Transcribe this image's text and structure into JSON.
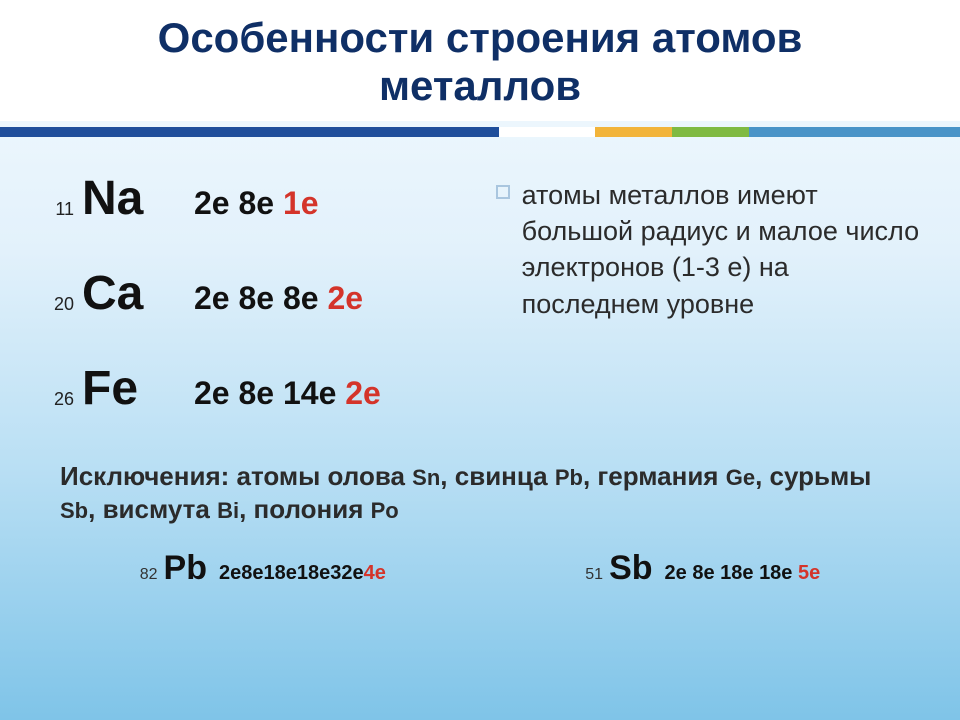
{
  "title": {
    "line1": "Особенности строения атомов",
    "line2": "металлов"
  },
  "divider_colors": [
    "#1f4e9b",
    "#ffffff",
    "#f2b43a",
    "#7fba42",
    "#4a94c8"
  ],
  "elements": [
    {
      "num": "11",
      "sym": "Na",
      "conf_inner": "2е 8е ",
      "conf_outer": "1е"
    },
    {
      "num": "20",
      "sym": "Ca",
      "conf_inner": "2е 8е 8е ",
      "conf_outer": "2е"
    },
    {
      "num": "26",
      "sym": "Fe",
      "conf_inner": "2е 8е 14е ",
      "conf_outer": "2е"
    }
  ],
  "bullet": "атомы металлов имеют большой радиус и малое число электронов (1-3 е)  на последнем уровне",
  "exceptions": {
    "lead": "Исключения: атомы олова ",
    "p1s": "Sn",
    "p1t": ", свинца ",
    "p2s": "Pb",
    "p2t": ", германия ",
    "p3s": "Ge",
    "p3t": ", сурьмы ",
    "p4s": "Sb",
    "p4t": ", висмута ",
    "p5s": "Bi",
    "p5t": ", полония ",
    "p6s": "Po"
  },
  "bottom": [
    {
      "num": "82",
      "sym": "Pb",
      "conf_inner": "2е8е18е18е32е",
      "conf_outer": "4е"
    },
    {
      "num": "51",
      "sym": "Sb",
      "conf_inner": "2е 8е 18е 18е ",
      "conf_outer": "5е"
    }
  ]
}
